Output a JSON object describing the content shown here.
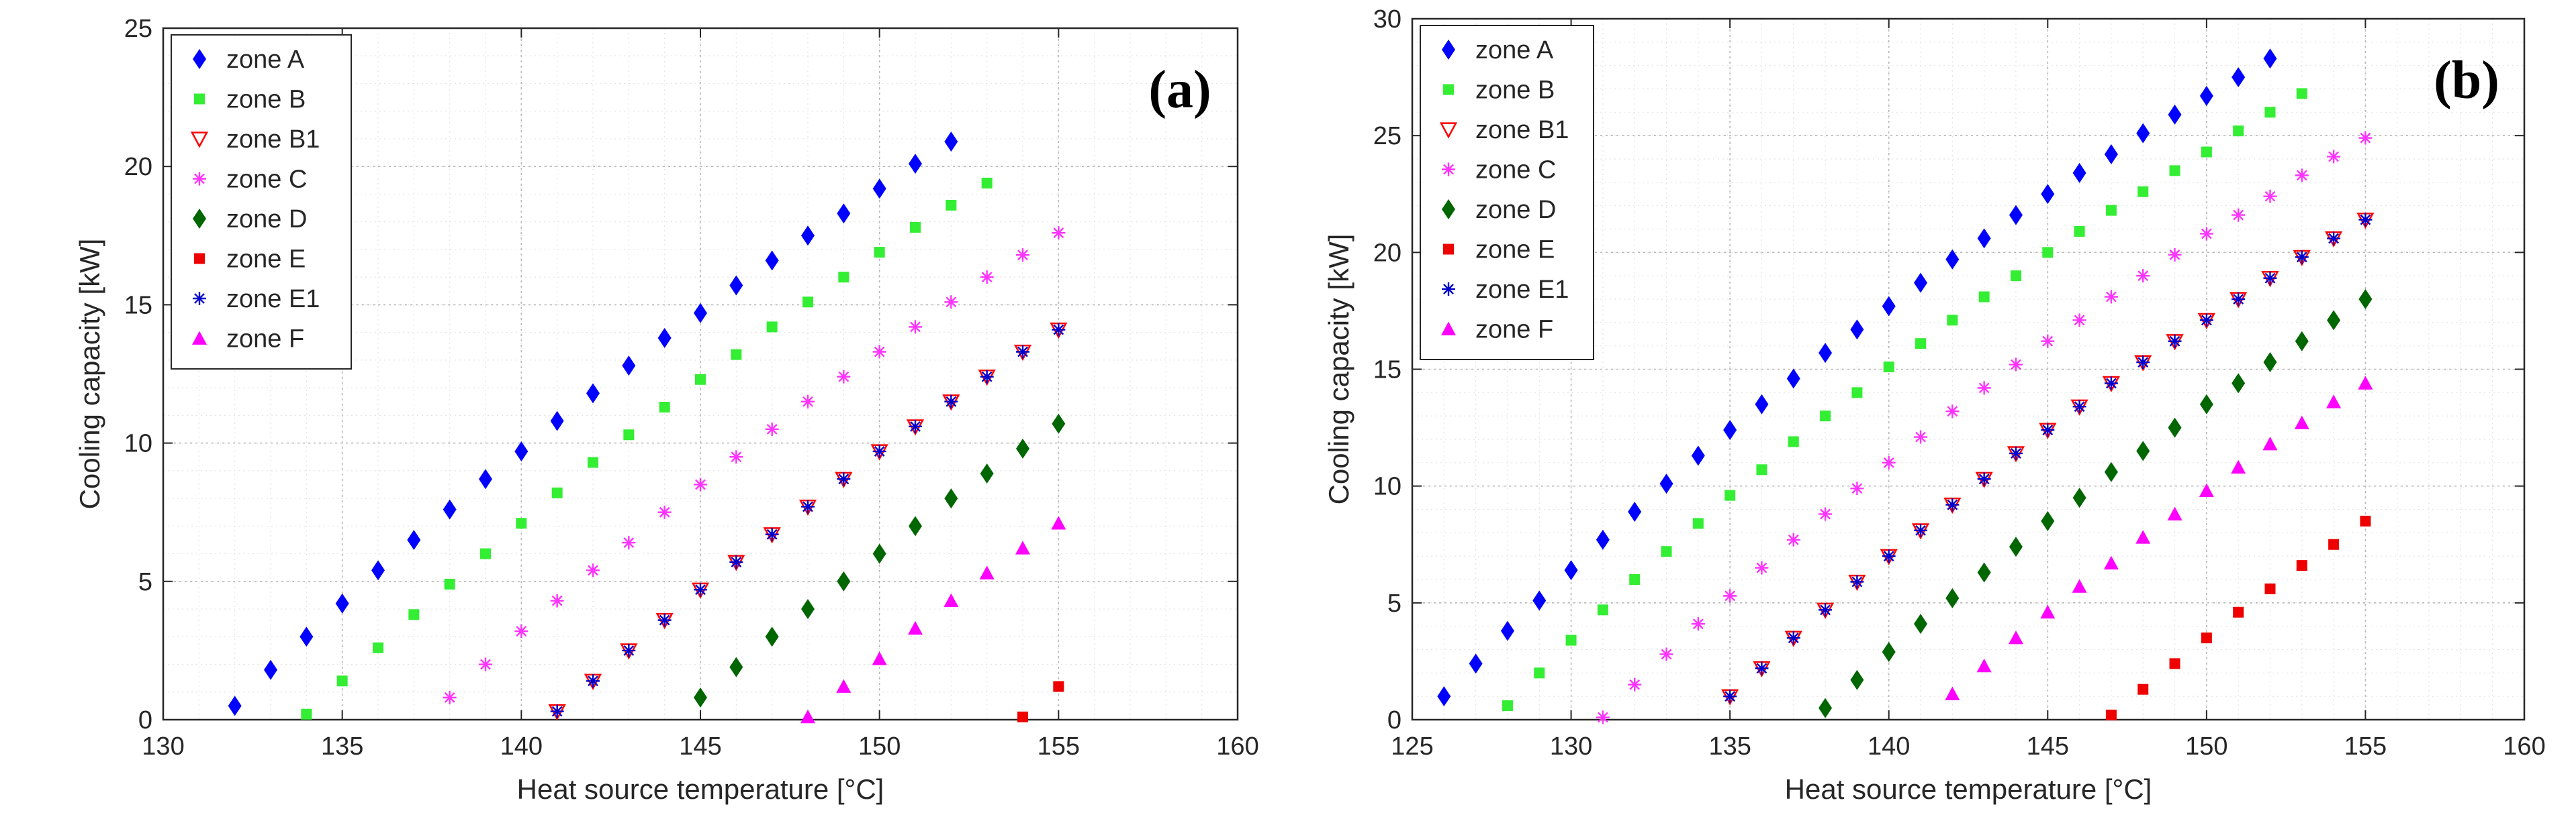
{
  "chart_data": [
    {
      "type": "scatter",
      "panel_label": "(a)",
      "xlabel": "Heat source temperature [°C]",
      "ylabel": "Cooling capacity [kW]",
      "xlim": [
        130,
        160
      ],
      "ylim": [
        0,
        25
      ],
      "xticks": [
        130,
        135,
        140,
        145,
        150,
        155,
        160
      ],
      "yticks": [
        0,
        5,
        10,
        15,
        20,
        25
      ],
      "grid": true,
      "legend_position": "top-left",
      "series": [
        {
          "name": "zone A",
          "marker": "diamond",
          "color": "#0000ff",
          "x": [
            132,
            133,
            134,
            135,
            136,
            137,
            138,
            139,
            140,
            141,
            142,
            143,
            144,
            145,
            146,
            147,
            148,
            149,
            150,
            151,
            152
          ],
          "y": [
            0.5,
            1.8,
            3.0,
            4.2,
            5.4,
            6.5,
            7.6,
            8.7,
            9.7,
            10.8,
            11.8,
            12.8,
            13.8,
            14.7,
            15.7,
            16.6,
            17.5,
            18.3,
            19.2,
            20.1,
            20.9
          ]
        },
        {
          "name": "zone B",
          "marker": "square",
          "color": "#33ee33",
          "x": [
            134,
            135,
            136,
            137,
            138,
            139,
            140,
            141,
            142,
            143,
            144,
            145,
            146,
            147,
            148,
            149,
            150,
            151,
            152,
            153
          ],
          "y": [
            0.2,
            1.4,
            2.6,
            3.8,
            4.9,
            6.0,
            7.1,
            8.2,
            9.3,
            10.3,
            11.3,
            12.3,
            13.2,
            14.2,
            15.1,
            16.0,
            16.9,
            17.8,
            18.6,
            19.4
          ]
        },
        {
          "name": "zone B1",
          "marker": "triangle-down-open",
          "color": "#ff0000",
          "x": [
            141,
            142,
            143,
            144,
            145,
            146,
            147,
            148,
            149,
            150,
            151,
            152,
            153,
            154,
            155
          ],
          "y": [
            0.3,
            1.4,
            2.5,
            3.6,
            4.7,
            5.7,
            6.7,
            7.7,
            8.7,
            9.7,
            10.6,
            11.5,
            12.4,
            13.3,
            14.1
          ]
        },
        {
          "name": "zone C",
          "marker": "asterisk",
          "color": "#ff33ff",
          "x": [
            138,
            139,
            140,
            141,
            142,
            143,
            144,
            145,
            146,
            147,
            148,
            149,
            150,
            151,
            152,
            153,
            154,
            155
          ],
          "y": [
            0.8,
            2.0,
            3.2,
            4.3,
            5.4,
            6.4,
            7.5,
            8.5,
            9.5,
            10.5,
            11.5,
            12.4,
            13.3,
            14.2,
            15.1,
            16.0,
            16.8,
            17.6
          ]
        },
        {
          "name": "zone D",
          "marker": "diamond",
          "color": "#006600",
          "x": [
            145,
            146,
            147,
            148,
            149,
            150,
            151,
            152,
            153,
            154,
            155
          ],
          "y": [
            0.8,
            1.9,
            3.0,
            4.0,
            5.0,
            6.0,
            7.0,
            8.0,
            8.9,
            9.8,
            10.7
          ]
        },
        {
          "name": "zone E",
          "marker": "square",
          "color": "#ee0000",
          "x": [
            154,
            155
          ],
          "y": [
            0.1,
            1.2
          ]
        },
        {
          "name": "zone E1",
          "marker": "asterisk",
          "color": "#0000cc",
          "x": [
            141,
            142,
            143,
            144,
            145,
            146,
            147,
            148,
            149,
            150,
            151,
            152,
            153,
            154,
            155
          ],
          "y": [
            0.3,
            1.4,
            2.5,
            3.6,
            4.7,
            5.7,
            6.7,
            7.7,
            8.7,
            9.7,
            10.6,
            11.5,
            12.4,
            13.3,
            14.1
          ]
        },
        {
          "name": "zone F",
          "marker": "triangle-up",
          "color": "#ff00ff",
          "x": [
            148,
            149,
            150,
            151,
            152,
            153,
            154,
            155
          ],
          "y": [
            0.1,
            1.2,
            2.2,
            3.3,
            4.3,
            5.3,
            6.2,
            7.1
          ]
        }
      ]
    },
    {
      "type": "scatter",
      "panel_label": "(b)",
      "xlabel": "Heat source temperature [°C]",
      "ylabel": "Cooling capacity [kW]",
      "xlim": [
        125,
        160
      ],
      "ylim": [
        0,
        30
      ],
      "xticks": [
        125,
        130,
        135,
        140,
        145,
        150,
        155,
        160
      ],
      "yticks": [
        0,
        5,
        10,
        15,
        20,
        25,
        30
      ],
      "grid": true,
      "legend_position": "top-left",
      "series": [
        {
          "name": "zone A",
          "marker": "diamond",
          "color": "#0000ff",
          "x": [
            126,
            127,
            128,
            129,
            130,
            131,
            132,
            133,
            134,
            135,
            136,
            137,
            138,
            139,
            140,
            141,
            142,
            143,
            144,
            145,
            146,
            147,
            148,
            149,
            150,
            151,
            152
          ],
          "y": [
            1.0,
            2.4,
            3.8,
            5.1,
            6.4,
            7.7,
            8.9,
            10.1,
            11.3,
            12.4,
            13.5,
            14.6,
            15.7,
            16.7,
            17.7,
            18.7,
            19.7,
            20.6,
            21.6,
            22.5,
            23.4,
            24.2,
            25.1,
            25.9,
            26.7,
            27.5,
            28.3
          ]
        },
        {
          "name": "zone B",
          "marker": "square",
          "color": "#33ee33",
          "x": [
            128,
            129,
            130,
            131,
            132,
            133,
            134,
            135,
            136,
            137,
            138,
            139,
            140,
            141,
            142,
            143,
            144,
            145,
            146,
            147,
            148,
            149,
            150,
            151,
            152,
            153
          ],
          "y": [
            0.6,
            2.0,
            3.4,
            4.7,
            6.0,
            7.2,
            8.4,
            9.6,
            10.7,
            11.9,
            13.0,
            14.0,
            15.1,
            16.1,
            17.1,
            18.1,
            19.0,
            20.0,
            20.9,
            21.8,
            22.6,
            23.5,
            24.3,
            25.2,
            26.0,
            26.8
          ]
        },
        {
          "name": "zone B1",
          "marker": "triangle-down-open",
          "color": "#ff0000",
          "x": [
            135,
            136,
            137,
            138,
            139,
            140,
            141,
            142,
            143,
            144,
            145,
            146,
            147,
            148,
            149,
            150,
            151,
            152,
            153,
            154,
            155
          ],
          "y": [
            1.0,
            2.2,
            3.5,
            4.7,
            5.9,
            7.0,
            8.1,
            9.2,
            10.3,
            11.4,
            12.4,
            13.4,
            14.4,
            15.3,
            16.2,
            17.1,
            18.0,
            18.9,
            19.8,
            20.6,
            21.4
          ]
        },
        {
          "name": "zone C",
          "marker": "asterisk",
          "color": "#ff33ff",
          "x": [
            131,
            132,
            133,
            134,
            135,
            136,
            137,
            138,
            139,
            140,
            141,
            142,
            143,
            144,
            145,
            146,
            147,
            148,
            149,
            150,
            151,
            152,
            153,
            154,
            155
          ],
          "y": [
            0.1,
            1.5,
            2.8,
            4.1,
            5.3,
            6.5,
            7.7,
            8.8,
            9.9,
            11.0,
            12.1,
            13.2,
            14.2,
            15.2,
            16.2,
            17.1,
            18.1,
            19.0,
            19.9,
            20.8,
            21.6,
            22.4,
            23.3,
            24.1,
            24.9
          ]
        },
        {
          "name": "zone D",
          "marker": "diamond",
          "color": "#006600",
          "x": [
            138,
            139,
            140,
            141,
            142,
            143,
            144,
            145,
            146,
            147,
            148,
            149,
            150,
            151,
            152,
            153,
            154,
            155
          ],
          "y": [
            0.5,
            1.7,
            2.9,
            4.1,
            5.2,
            6.3,
            7.4,
            8.5,
            9.5,
            10.6,
            11.5,
            12.5,
            13.5,
            14.4,
            15.3,
            16.2,
            17.1,
            18.0
          ]
        },
        {
          "name": "zone E",
          "marker": "square",
          "color": "#ee0000",
          "x": [
            147,
            148,
            149,
            150,
            151,
            152,
            153,
            154,
            155
          ],
          "y": [
            0.2,
            1.3,
            2.4,
            3.5,
            4.6,
            5.6,
            6.6,
            7.5,
            8.5
          ]
        },
        {
          "name": "zone E1",
          "marker": "asterisk",
          "color": "#0000cc",
          "x": [
            135,
            136,
            137,
            138,
            139,
            140,
            141,
            142,
            143,
            144,
            145,
            146,
            147,
            148,
            149,
            150,
            151,
            152,
            153,
            154,
            155
          ],
          "y": [
            1.0,
            2.2,
            3.5,
            4.7,
            5.9,
            7.0,
            8.1,
            9.2,
            10.3,
            11.4,
            12.4,
            13.4,
            14.4,
            15.3,
            16.2,
            17.1,
            18.0,
            18.9,
            19.8,
            20.6,
            21.4
          ]
        },
        {
          "name": "zone F",
          "marker": "triangle-up",
          "color": "#ff00ff",
          "x": [
            142,
            143,
            144,
            145,
            146,
            147,
            148,
            149,
            150,
            151,
            152,
            153,
            154,
            155
          ],
          "y": [
            1.1,
            2.3,
            3.5,
            4.6,
            5.7,
            6.7,
            7.8,
            8.8,
            9.8,
            10.8,
            11.8,
            12.7,
            13.6,
            14.4
          ]
        }
      ]
    }
  ]
}
